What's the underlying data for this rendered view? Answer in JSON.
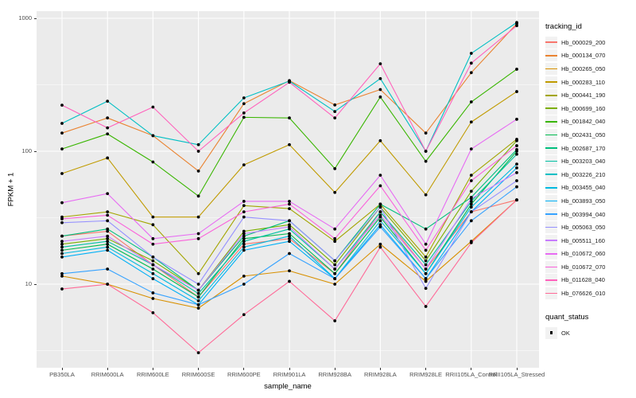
{
  "chart_data": {
    "type": "line",
    "xlabel": "sample_name",
    "ylabel": "FPKM + 1",
    "y_scale": "log10",
    "y_ticks": [
      10,
      100,
      1000
    ],
    "y_minor_ticks": [
      3.162,
      31.623,
      316.228
    ],
    "ylim": [
      2.35,
      1130
    ],
    "grid": true,
    "legend_position": "right",
    "legend_title": "tracking_id",
    "legend2_title": "quant_status",
    "legend2_items": [
      "OK"
    ],
    "point_color": "#000000",
    "panel_bg": "#EBEBEB",
    "grid_color": "#FFFFFF",
    "categories": [
      "PB350LA",
      "RRIM600LA",
      "RRIM600LE",
      "RRIM600SE",
      "RRIM600PE",
      "RRIM901LA",
      "RRIM928BA",
      "RRIM928LA",
      "RRIM928LE",
      "RRII105LA_Control",
      "RRII105LA_Stressed"
    ],
    "series": [
      {
        "name": "Hb_000029_200",
        "color": "#F8766D",
        "values": [
          23,
          25,
          14,
          8,
          20,
          22,
          12,
          35,
          13,
          35,
          43
        ]
      },
      {
        "name": "Hb_000134_070",
        "color": "#EA8331",
        "values": [
          137,
          178,
          131,
          71,
          228,
          340,
          223,
          291,
          137,
          390,
          910
        ]
      },
      {
        "name": "Hb_000265_050",
        "color": "#D89000",
        "values": [
          11.5,
          10,
          7.8,
          6.6,
          11.5,
          12.6,
          10,
          20,
          10.5,
          21,
          43
        ]
      },
      {
        "name": "Hb_000283_110",
        "color": "#C09B00",
        "values": [
          68,
          89,
          32,
          32,
          79,
          112,
          49,
          120,
          47,
          166,
          281
        ]
      },
      {
        "name": "Hb_000441_190",
        "color": "#A3A500",
        "values": [
          32,
          35,
          28,
          12,
          39,
          37,
          21,
          40,
          16,
          66,
          123
        ]
      },
      {
        "name": "Hb_000699_160",
        "color": "#7CAE00",
        "values": [
          20,
          22,
          15,
          9,
          25,
          28,
          14,
          38,
          15,
          50,
          120
        ]
      },
      {
        "name": "Hb_001842_040",
        "color": "#39B600",
        "values": [
          104,
          135,
          83,
          46,
          180,
          178,
          74,
          256,
          84,
          235,
          414
        ]
      },
      {
        "name": "Hb_002431_050",
        "color": "#00BB4E",
        "values": [
          18,
          20,
          13,
          8,
          22,
          24,
          12,
          32,
          12,
          40,
          100
        ]
      },
      {
        "name": "Hb_002687_170",
        "color": "#00BF7D",
        "values": [
          23,
          26,
          16,
          9,
          23,
          30,
          15,
          40,
          26,
          45,
          103
        ]
      },
      {
        "name": "Hb_003203_040",
        "color": "#00C1A3",
        "values": [
          19,
          21,
          14,
          8.5,
          21,
          26,
          13,
          35,
          14,
          42,
          95
        ]
      },
      {
        "name": "Hb_003226_210",
        "color": "#00BFC4",
        "values": [
          162,
          238,
          131,
          112,
          252,
          337,
          199,
          352,
          100,
          545,
          930
        ]
      },
      {
        "name": "Hb_003455_040",
        "color": "#00BAE0",
        "values": [
          17,
          19,
          12,
          7.5,
          19,
          23,
          11,
          30,
          12,
          38,
          80
        ]
      },
      {
        "name": "Hb_003893_050",
        "color": "#00B0F6",
        "values": [
          16,
          18,
          11,
          7,
          18,
          21,
          11,
          28,
          11,
          35,
          75
        ]
      },
      {
        "name": "Hb_003994_040",
        "color": "#35A2FF",
        "values": [
          12,
          13,
          8.6,
          7,
          10,
          17,
          11,
          27,
          11,
          30,
          54
        ]
      },
      {
        "name": "Hb_005063_050",
        "color": "#9590FF",
        "values": [
          29,
          30,
          16,
          10,
          32,
          30,
          15,
          38,
          9.3,
          35,
          60
        ]
      },
      {
        "name": "Hb_005511_160",
        "color": "#C77CFF",
        "values": [
          21,
          23,
          14,
          9,
          24,
          27,
          13,
          33,
          13,
          44,
          69
        ]
      },
      {
        "name": "Hb_010672_060",
        "color": "#E76BF3",
        "values": [
          41,
          48,
          22,
          24,
          42,
          42,
          26,
          66,
          20,
          104,
          174
        ]
      },
      {
        "name": "Hb_010672_070",
        "color": "#FA62DB",
        "values": [
          31,
          33,
          20,
          22,
          35,
          40,
          22,
          55,
          18,
          60,
          110
        ]
      },
      {
        "name": "Hb_011628_040",
        "color": "#FF62BC",
        "values": [
          222,
          150,
          215,
          100,
          194,
          330,
          178,
          455,
          100,
          460,
          880
        ]
      },
      {
        "name": "Hb_076626_010",
        "color": "#FF6A98",
        "values": [
          9.2,
          10,
          6.1,
          3.05,
          5.9,
          10.5,
          5.3,
          19,
          6.8,
          20.5,
          43
        ]
      }
    ]
  }
}
